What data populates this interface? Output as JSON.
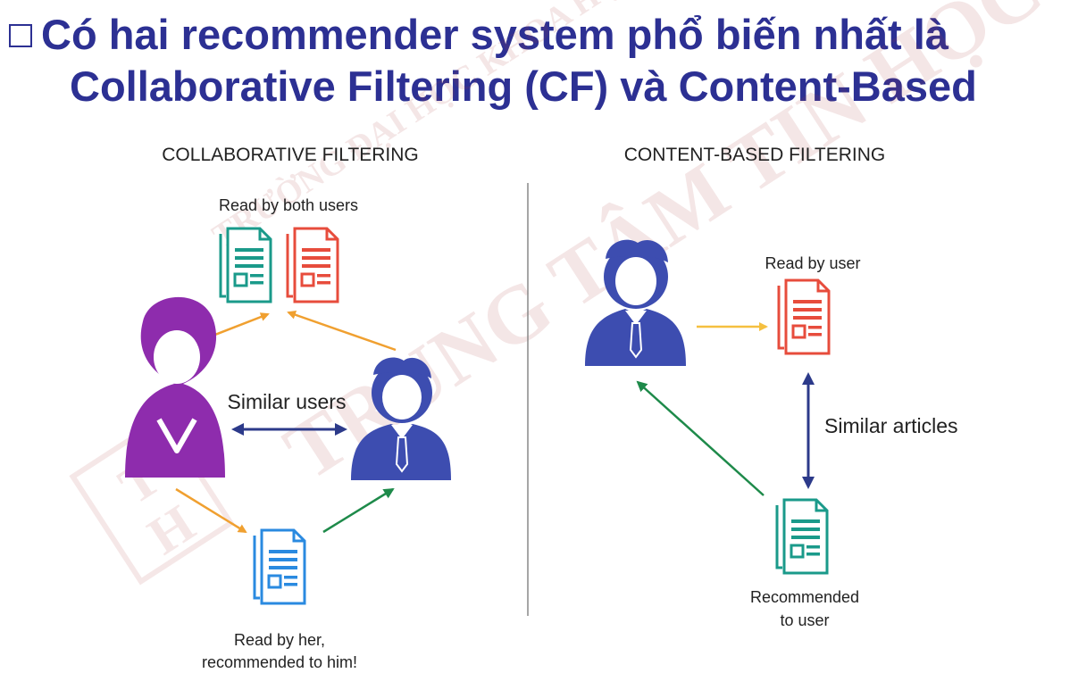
{
  "title": {
    "line1": "Có hai recommender system phổ biến nhất là",
    "line2": "Collaborative Filtering (CF) và Content-Based"
  },
  "watermark": {
    "line1": "TRƯỜNG ĐẠI HỌC KHOA HỌC TỰ NHIÊN",
    "line2": "TRUNG TÂM TIN HỌC"
  },
  "collaborative": {
    "heading": "COLLABORATIVE FILTERING",
    "read_by_both": "Read by both users",
    "similar_users": "Similar users",
    "read_by_her_1": "Read by her,",
    "read_by_her_2": "recommended to him!"
  },
  "content_based": {
    "heading": "CONTENT-BASED FILTERING",
    "read_by_user": "Read by user",
    "similar_articles": "Similar articles",
    "recommended_1": "Recommended",
    "recommended_2": "to user"
  },
  "colors": {
    "title": "#2c3093",
    "teal_doc": "#1a9a8a",
    "red_doc": "#e74c3c",
    "blue_doc": "#2a8ae0",
    "her": "#8e2cad",
    "him": "#3d4db0",
    "orange_arrow": "#f0a030",
    "green_arrow": "#1e8a4a",
    "navy_arrow": "#2c3a8a"
  }
}
